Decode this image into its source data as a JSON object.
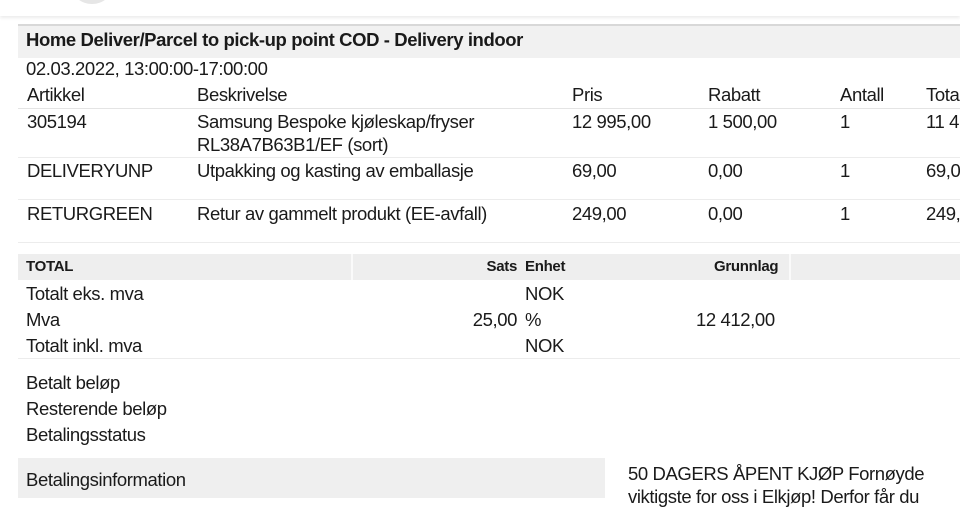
{
  "order": {
    "title": "Home Deliver/Parcel to pick-up point COD - Delivery indoor",
    "date": "02.03.2022, 13:00:00-17:00:00",
    "columns": [
      "Artikkel",
      "Beskrivelse",
      "Pris",
      "Rabatt",
      "Antall",
      "Tota"
    ],
    "rows": [
      {
        "artikkel": "305194",
        "beskrivelse": "Samsung Bespoke kjøleskap/fryser",
        "beskrivelse2": "RL38A7B63B1/EF (sort)",
        "pris": "12 995,00",
        "rabatt": "1 500,00",
        "antall": "1",
        "total": "11 4"
      },
      {
        "artikkel": "DELIVERYUNP",
        "beskrivelse": "Utpakking og kasting av emballasje",
        "pris": "69,00",
        "rabatt": "0,00",
        "antall": "1",
        "total": "69,0"
      },
      {
        "artikkel": "RETURGREEN",
        "beskrivelse": "Retur av gammelt produkt (EE-avfall)",
        "pris": "249,00",
        "rabatt": "0,00",
        "antall": "1",
        "total": "249,"
      }
    ]
  },
  "totals": {
    "header": {
      "label": "TOTAL",
      "sats": "Sats",
      "enhet": "Enhet",
      "grunnlag": "Grunnlag"
    },
    "rows": [
      {
        "label": "Totalt eks. mva",
        "sats": "",
        "enhet": "NOK",
        "grunnlag": ""
      },
      {
        "label": "Mva",
        "sats": "25,00",
        "enhet": "%",
        "grunnlag": "12 412,00"
      },
      {
        "label": "Totalt inkl. mva",
        "sats": "",
        "enhet": "NOK",
        "grunnlag": ""
      }
    ]
  },
  "payment": {
    "paid": "Betalt beløp",
    "remaining": "Resterende beløp",
    "status": "Betalingsstatus",
    "info": "Betalingsinformation"
  },
  "promo": {
    "line1": "50 DAGERS ÅPENT KJØP Fornøyde",
    "line2": "viktigste for oss i Elkjøp! Derfor får du"
  }
}
